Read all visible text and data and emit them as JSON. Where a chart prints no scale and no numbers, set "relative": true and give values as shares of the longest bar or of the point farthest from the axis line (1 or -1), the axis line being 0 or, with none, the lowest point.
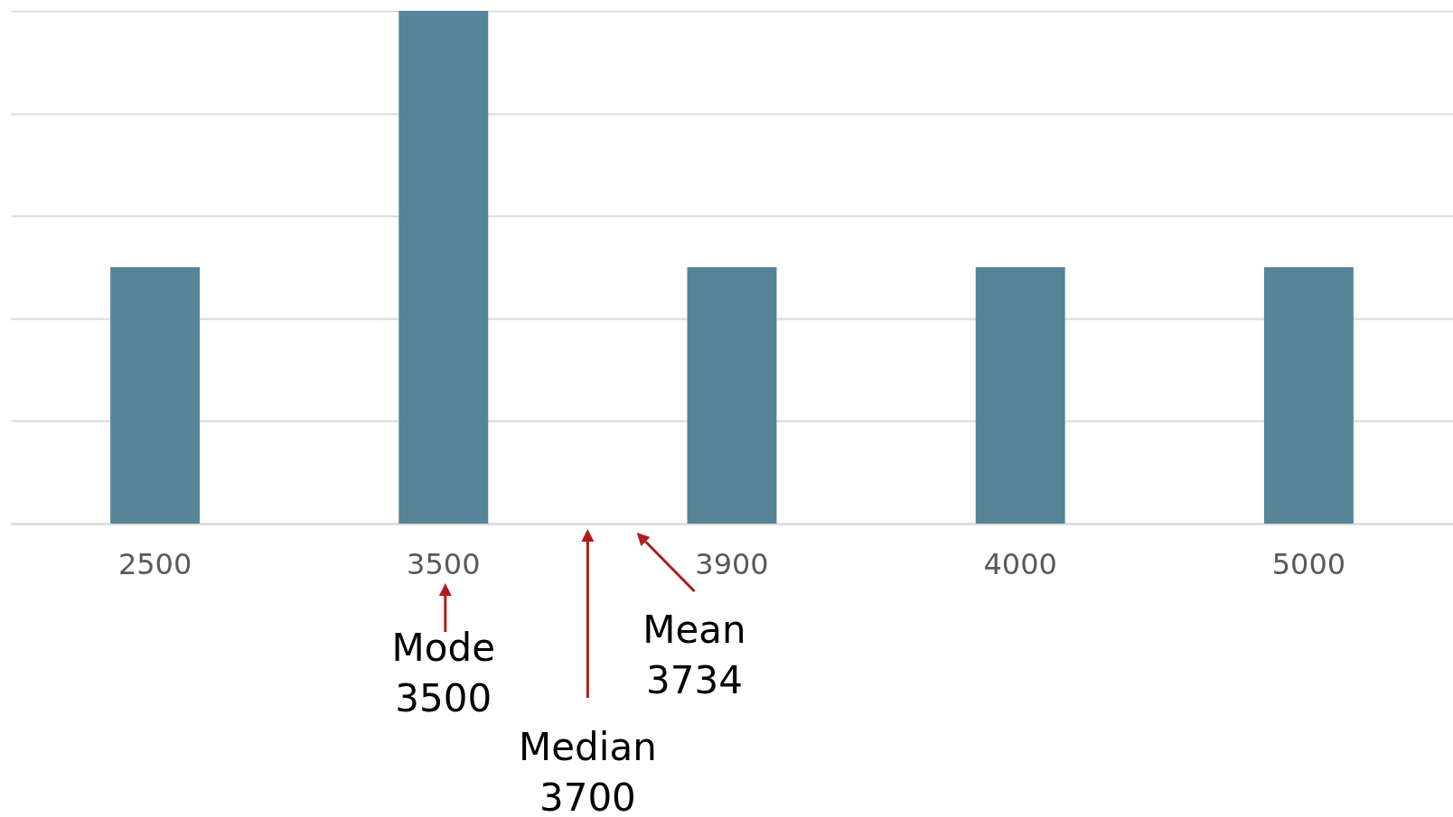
{
  "chart_data": {
    "type": "bar",
    "relative": true,
    "categories": [
      "2500",
      "3500",
      "3900",
      "4000",
      "5000"
    ],
    "values": [
      0.5,
      1,
      0.5,
      0.5,
      0.5
    ],
    "color": "#568499",
    "grid": "y",
    "annotations": [
      "Mode\n3500",
      "Median\n3700",
      "Mean\n3734"
    ]
  }
}
